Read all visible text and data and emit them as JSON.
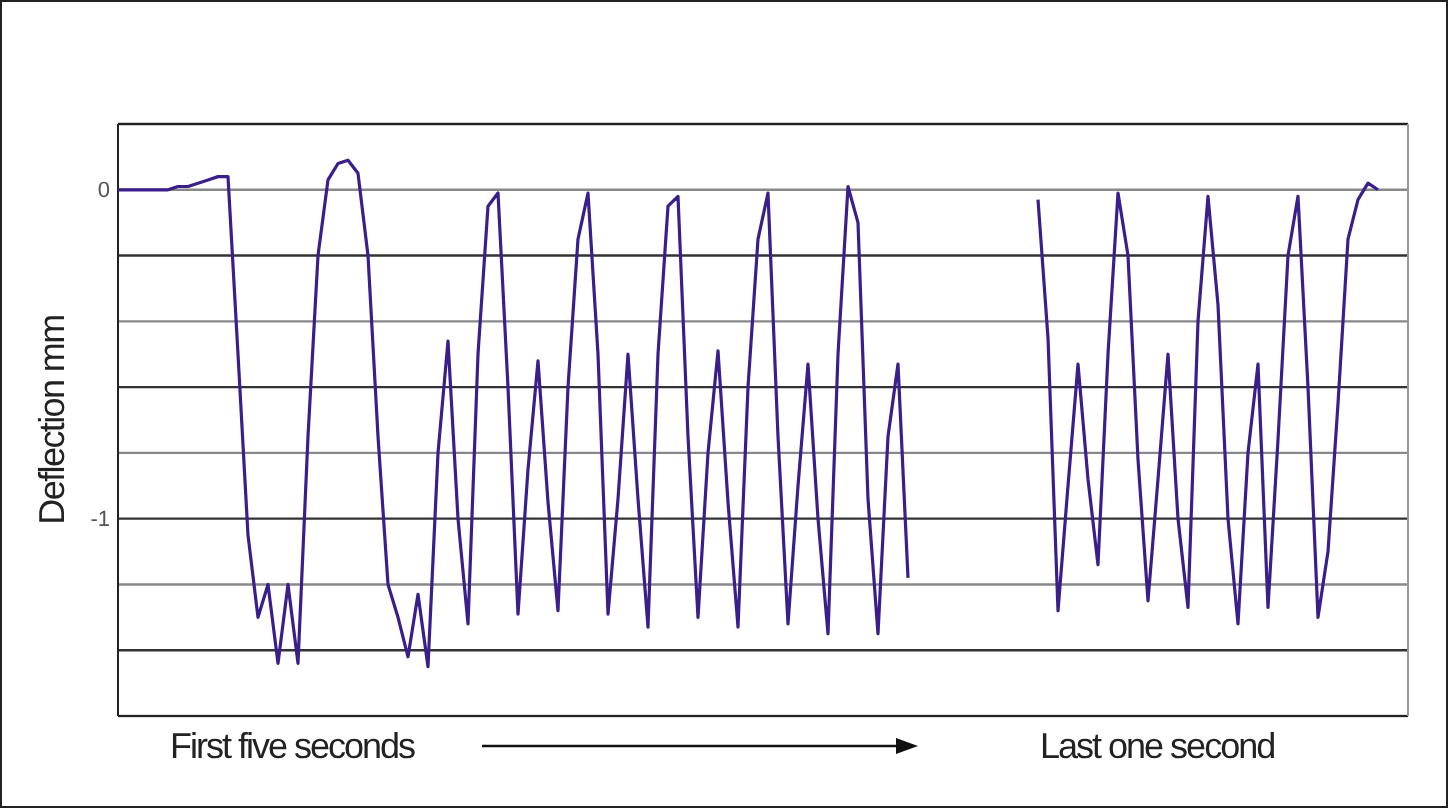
{
  "chart_data": {
    "type": "line",
    "ylabel": "Deflection mm",
    "annotations": [
      "First five seconds",
      "Last one second"
    ],
    "categories": [
      null,
      null,
      null,
      null,
      null,
      null,
      null,
      null,
      null,
      null,
      null,
      null,
      null,
      null,
      null,
      null,
      null,
      null,
      null,
      null,
      null,
      null,
      null,
      null,
      null,
      null,
      null,
      null,
      null,
      null,
      null,
      null,
      null,
      null,
      null,
      null,
      null,
      null,
      null,
      null,
      null,
      null,
      null,
      null,
      null,
      null,
      null,
      null,
      null,
      null,
      null,
      null,
      null,
      null,
      null,
      null,
      null,
      null,
      null,
      null,
      null,
      null,
      null,
      null,
      null,
      null,
      null,
      null,
      null,
      null,
      null,
      null,
      null,
      null,
      null,
      null,
      null,
      null,
      null,
      null,
      null,
      null,
      null,
      null,
      null,
      null,
      null,
      null,
      null,
      null,
      null,
      null,
      null,
      null,
      null,
      null,
      null,
      null,
      null,
      null,
      null,
      null,
      null,
      null,
      null,
      null,
      null,
      null,
      null,
      null,
      null,
      null,
      null,
      null,
      null,
      null,
      null,
      null,
      null,
      null,
      null,
      null,
      null,
      null,
      null,
      null,
      null,
      null,
      null,
      null
    ],
    "series": [
      {
        "color": "#3a1f8c",
        "values": [
          0,
          0,
          0,
          0,
          0,
          0,
          0.01,
          0.01,
          0.02,
          0.03,
          0.04,
          0.04,
          -0.5,
          -1.05,
          -1.3,
          -1.2,
          -1.44,
          -1.2,
          -1.44,
          -0.75,
          -0.2,
          0.03,
          0.08,
          0.09,
          0.05,
          -0.2,
          -0.75,
          -1.2,
          -1.3,
          -1.42,
          -1.23,
          -1.45,
          -0.8,
          -0.46,
          -1.0,
          -1.32,
          -0.5,
          -0.05,
          -0.01,
          -0.6,
          -1.29,
          -0.85,
          -0.52,
          -0.95,
          -1.28,
          -0.6,
          -0.15,
          -0.01,
          -0.5,
          -1.29,
          -0.94,
          -0.5,
          -0.94,
          -1.33,
          -0.5,
          -0.05,
          -0.02,
          -0.75,
          -1.3,
          -0.8,
          -0.49,
          -0.95,
          -1.33,
          -0.6,
          -0.15,
          -0.01,
          -0.75,
          -1.32,
          -0.9,
          -0.53,
          -1.0,
          -1.35,
          -0.5,
          0.01,
          -0.1,
          -0.94,
          -1.35,
          -0.75,
          -0.53,
          -1.18,
          null,
          null,
          null,
          null,
          null,
          null,
          null,
          null,
          null,
          null,
          null,
          null,
          null,
          null,
          null,
          null,
          null,
          null,
          null,
          null,
          null,
          null,
          null,
          null,
          null,
          null,
          null,
          null,
          null,
          null,
          null,
          null,
          null,
          null,
          null,
          null,
          null,
          null,
          null,
          null,
          null,
          null,
          null,
          null,
          null,
          null,
          null,
          null,
          null,
          null
        ]
      },
      {
        "color": "#3a1f8c",
        "values": [
          null,
          null,
          null,
          null,
          null,
          null,
          null,
          null,
          null,
          null,
          null,
          null,
          null,
          null,
          null,
          null,
          null,
          null,
          null,
          null,
          null,
          null,
          null,
          null,
          null,
          null,
          null,
          null,
          null,
          null,
          null,
          null,
          null,
          null,
          null,
          null,
          null,
          null,
          null,
          null,
          null,
          null,
          null,
          null,
          null,
          null,
          null,
          null,
          null,
          null,
          null,
          null,
          null,
          null,
          null,
          null,
          null,
          null,
          null,
          null,
          null,
          null,
          null,
          null,
          null,
          null,
          null,
          null,
          null,
          null,
          null,
          null,
          null,
          null,
          null,
          null,
          null,
          null,
          null,
          null,
          null,
          null,
          null,
          null,
          null,
          null,
          null,
          null,
          null,
          null,
          null,
          null,
          -0.03,
          -0.45,
          -1.28,
          -0.9,
          -0.53,
          -0.88,
          -1.14,
          -0.5,
          -0.01,
          -0.2,
          -0.82,
          -1.25,
          -0.88,
          -0.5,
          -1.0,
          -1.27,
          -0.4,
          -0.02,
          -0.35,
          -1.0,
          -1.32,
          -0.8,
          -0.53,
          -1.27,
          -0.76,
          -0.2,
          -0.02,
          -0.6,
          -1.3,
          -1.1,
          -0.65,
          -0.15,
          -0.03,
          0.02,
          0,
          null,
          null,
          null
        ]
      }
    ],
    "ylim": [
      -1.6,
      0.2
    ],
    "yticks": [
      {
        "value": 0.2,
        "label": null
      },
      0,
      {
        "value": -0.2,
        "label": null
      },
      {
        "value": -0.4,
        "label": null
      },
      {
        "value": -0.6,
        "label": null
      },
      {
        "value": -0.8,
        "label": null
      },
      -1,
      {
        "value": -1.2,
        "label": null
      },
      {
        "value": -1.4,
        "label": null
      },
      {
        "value": -1.6,
        "label": null
      }
    ],
    "grid": "y",
    "line_style": "solid"
  }
}
